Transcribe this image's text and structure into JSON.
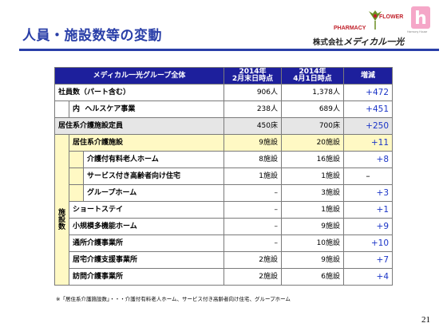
{
  "title": "人員・施設数等の変動",
  "logos": {
    "pharmacy": "PHARMACY",
    "flower": "FLOWER",
    "harmony_mark": "h",
    "harmony": "Harmony House",
    "company_prefix": "株式会社",
    "company_name": "メディカル一光"
  },
  "table": {
    "header": {
      "group": "メディカル一光グループ全体",
      "col1_line1": "2014年",
      "col1_line2": "2月末日時点",
      "col2_line1": "2014年",
      "col2_line2": "4月1日時点",
      "col3": "増減"
    },
    "employees": {
      "label": "社員数（パート含む）",
      "feb": "906人",
      "apr": "1,378人",
      "diff": "+472",
      "sub_prefix": "内",
      "sub_label": "ヘルスケア事業",
      "sub_feb": "238人",
      "sub_apr": "689人",
      "sub_diff": "+451"
    },
    "capacity": {
      "label": "居住系介護施設定員",
      "feb": "450床",
      "apr": "700床",
      "diff": "+250"
    },
    "facilities_group_label": "施設数",
    "facilities": [
      {
        "label": "居住系介護施設",
        "feb": "9施設",
        "apr": "20施設",
        "diff": "+11"
      },
      {
        "label": "介護付有料老人ホーム",
        "feb": "8施設",
        "apr": "16施設",
        "diff": "+8"
      },
      {
        "label": "サービス付き高齢者向け住宅",
        "feb": "1施設",
        "apr": "1施設",
        "diff": "–"
      },
      {
        "label": "グループホーム",
        "feb": "–",
        "apr": "3施設",
        "diff": "+3"
      },
      {
        "label": "ショートステイ",
        "feb": "–",
        "apr": "1施設",
        "diff": "+1"
      },
      {
        "label": "小規模多機能ホーム",
        "feb": "–",
        "apr": "9施設",
        "diff": "+9"
      },
      {
        "label": "通所介護事業所",
        "feb": "–",
        "apr": "10施設",
        "diff": "+10"
      },
      {
        "label": "居宅介護支援事業所",
        "feb": "2施設",
        "apr": "9施設",
        "diff": "+7"
      },
      {
        "label": "訪問介護事業所",
        "feb": "2施設",
        "apr": "6施設",
        "diff": "+4"
      }
    ]
  },
  "footnote": "※「居住系介護施設数」・・・介護付有料老人ホーム、サービス付き高齢者向け住宅、グループホーム",
  "page_number": "21",
  "colors": {
    "header_bg": "#1d1f9c",
    "title": "#2a3fa8",
    "highlight": "#fff9c4",
    "diff_text": "#1b35c7"
  }
}
